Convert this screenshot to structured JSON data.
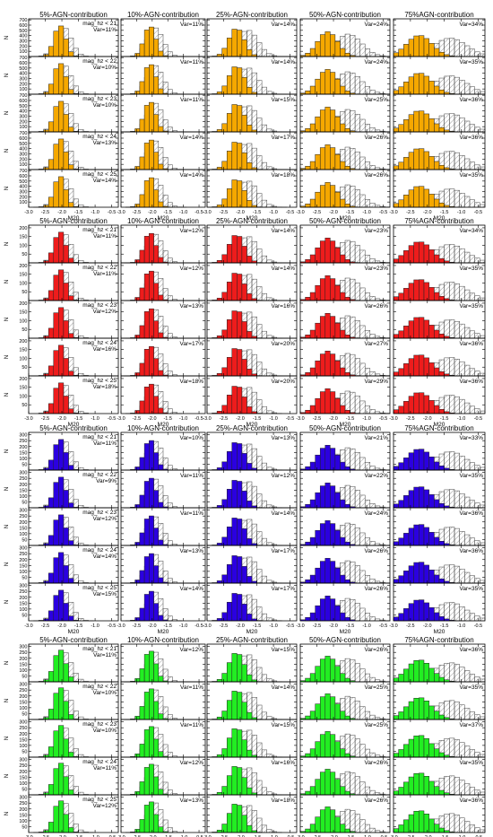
{
  "figure": {
    "column_titles": [
      "5%-AGN-contribution",
      "10%-AGN-contribution",
      "25%-AGN-contribution",
      "50%-AGN-contribution",
      "75%AGN-contribution"
    ],
    "row_labels": [
      "mag_hz < 21",
      "mag_hz < 22",
      "mag_hz < 23",
      "mag_hz < 24",
      "mag_hz < 25"
    ],
    "x_axis_label": "M20",
    "y_axis_label": "N",
    "x_tick_labels": [
      "-3.0",
      "-2.5",
      "-2.0",
      "-1.5",
      "-1.0",
      "-0.5"
    ]
  },
  "chart_data": [
    {
      "type": "histogram-grid",
      "fill_color": "#f5a800",
      "y_ticks": [
        100,
        200,
        300,
        400,
        500,
        600,
        700
      ],
      "ylim": [
        0,
        720
      ],
      "xlim": [
        -3.0,
        -0.3
      ],
      "var_labels": [
        [
          "Var=11%",
          "Var=11%",
          "Var=14%",
          "Var=24%",
          "Var=34%"
        ],
        [
          "Var=10%",
          "Var=11%",
          "Var=14%",
          "Var=24%",
          "Var=35%"
        ],
        [
          "Var=10%",
          "Var=11%",
          "Var=15%",
          "Var=25%",
          "Var=36%"
        ],
        [
          "Var=13%",
          "Var=14%",
          "Var=17%",
          "Var=26%",
          "Var=36%"
        ],
        [
          "Var=14%",
          "Var=14%",
          "Var=18%",
          "Var=26%",
          "Var=35%"
        ]
      ]
    },
    {
      "type": "histogram-grid",
      "fill_color": "#ee1c1c",
      "y_ticks": [
        50,
        100,
        150,
        200
      ],
      "ylim": [
        0,
        215
      ],
      "xlim": [
        -3.0,
        -0.3
      ],
      "var_labels": [
        [
          "Var=11%",
          "Var=12%",
          "Var=14%",
          "Var=23%",
          "Var=34%"
        ],
        [
          "Var=11%",
          "Var=12%",
          "Var=14%",
          "Var=23%",
          "Var=35%"
        ],
        [
          "Var=12%",
          "Var=13%",
          "Var=16%",
          "Var=26%",
          "Var=35%"
        ],
        [
          "Var=16%",
          "Var=17%",
          "Var=20%",
          "Var=27%",
          "Var=36%"
        ],
        [
          "Var=18%",
          "Var=18%",
          "Var=20%",
          "Var=29%",
          "Var=36%"
        ]
      ]
    },
    {
      "type": "histogram-grid",
      "fill_color": "#2b00e0",
      "y_ticks": [
        50,
        100,
        150,
        200,
        250,
        300
      ],
      "ylim": [
        0,
        320
      ],
      "xlim": [
        -3.0,
        -0.3
      ],
      "var_labels": [
        [
          "Var=11%",
          "Var=10%",
          "Var=13%",
          "Var=21%",
          "Var=33%"
        ],
        [
          "Var=9%",
          "Var=11%",
          "Var=12%",
          "Var=22%",
          "Var=35%"
        ],
        [
          "Var=12%",
          "Var=11%",
          "Var=14%",
          "Var=24%",
          "Var=36%"
        ],
        [
          "Var=14%",
          "Var=13%",
          "Var=17%",
          "Var=26%",
          "Var=36%"
        ],
        [
          "Var=15%",
          "Var=14%",
          "Var=17%",
          "Var=26%",
          "Var=35%"
        ]
      ]
    },
    {
      "type": "histogram-grid",
      "fill_color": "#22ee22",
      "y_ticks": [
        50,
        100,
        150,
        200,
        250,
        300
      ],
      "ylim": [
        0,
        320
      ],
      "xlim": [
        -3.0,
        -0.3
      ],
      "var_labels": [
        [
          "Var=11%",
          "Var=12%",
          "Var=15%",
          "Var=26%",
          "Var=36%"
        ],
        [
          "Var=10%",
          "Var=11%",
          "Var=14%",
          "Var=25%",
          "Var=35%"
        ],
        [
          "Var=10%",
          "Var=11%",
          "Var=15%",
          "Var=25%",
          "Var=37%"
        ],
        [
          "Var=11%",
          "Var=12%",
          "Var=16%",
          "Var=26%",
          "Var=35%"
        ],
        [
          "Var=12%",
          "Var=13%",
          "Var=18%",
          "Var=26%",
          "Var=36%"
        ]
      ]
    }
  ]
}
